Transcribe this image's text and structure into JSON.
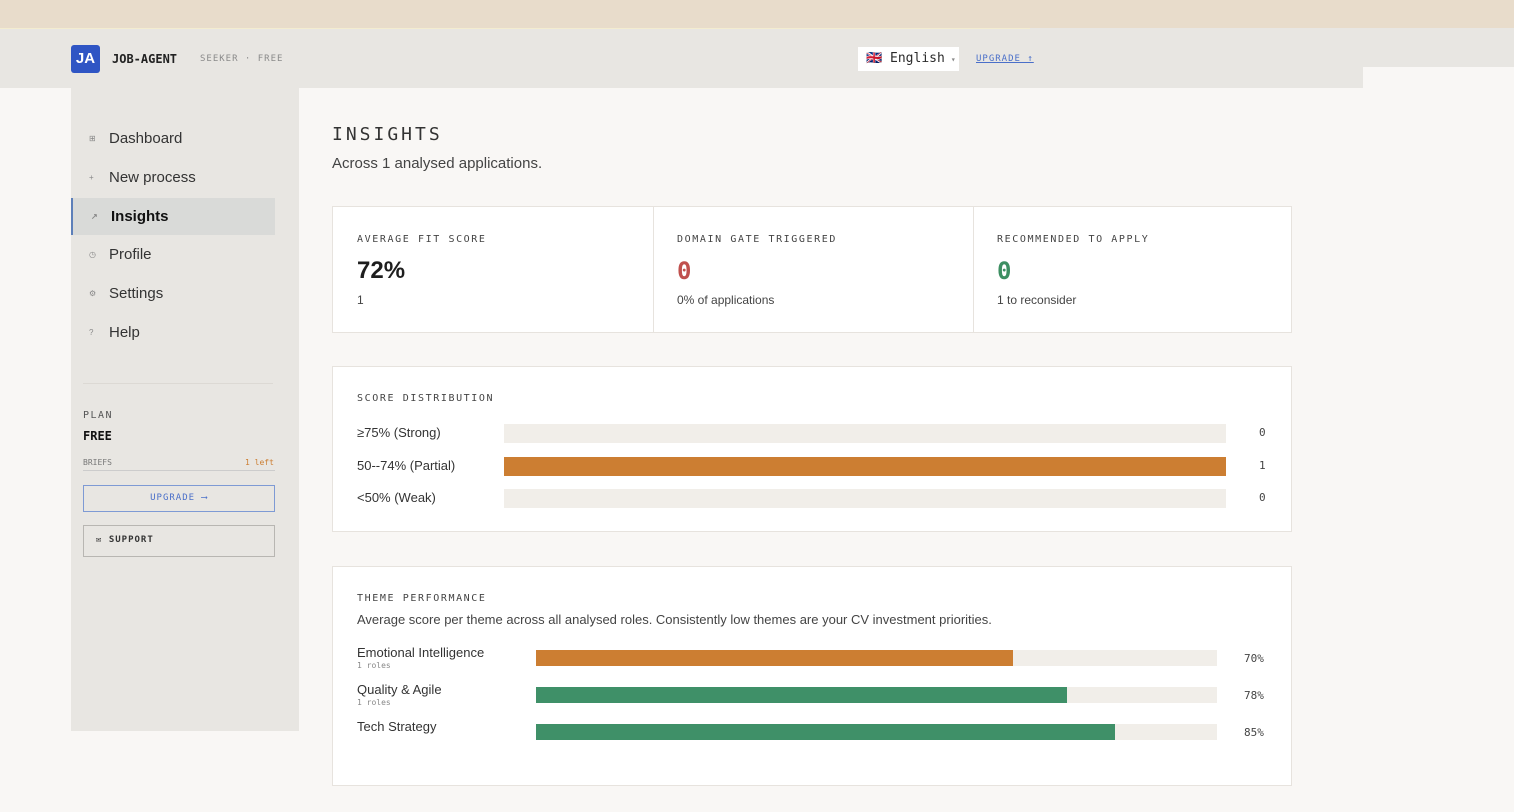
{
  "header": {
    "logo": "JA",
    "brand": "JOB-AGENT",
    "tier": "SEEKER · FREE",
    "language": "🇬🇧 English",
    "upgrade": "UPGRADE ↑"
  },
  "nav": [
    {
      "icon": "⊞",
      "label": "Dashboard"
    },
    {
      "icon": "+",
      "label": "New process"
    },
    {
      "icon": "↗",
      "label": "Insights",
      "active": true
    },
    {
      "icon": "◷",
      "label": "Profile"
    },
    {
      "icon": "⚙",
      "label": "Settings"
    },
    {
      "icon": "?",
      "label": "Help"
    }
  ],
  "plan": {
    "label": "PLAN",
    "name": "FREE",
    "briefs_label": "BRIEFS",
    "briefs_left": "1 left",
    "upgrade": "UPGRADE ⟶",
    "support": "✉ SUPPORT"
  },
  "page": {
    "title": "INSIGHTS",
    "subtitle": "Across 1 analysed applications."
  },
  "stats": [
    {
      "label": "AVERAGE FIT SCORE",
      "value": "72%",
      "note": "1",
      "color": "#1e1e1e"
    },
    {
      "label": "DOMAIN GATE TRIGGERED",
      "value": "0",
      "note": "0% of applications",
      "color": "#c0504d"
    },
    {
      "label": "RECOMMENDED TO APPLY",
      "value": "0",
      "note": "1 to reconsider",
      "color": "#3d8f62"
    }
  ],
  "distribution": {
    "title": "SCORE DISTRIBUTION",
    "color": "#cc7e32",
    "rows": [
      {
        "label": "≥75% (Strong)",
        "count": 0
      },
      {
        "label": "50--74% (Partial)",
        "count": 1
      },
      {
        "label": "<50% (Weak)",
        "count": 0
      }
    ]
  },
  "themes": {
    "title": "THEME PERFORMANCE",
    "description": "Average score per theme across all analysed roles. Consistently low themes are your CV investment priorities.",
    "rows": [
      {
        "label": "Emotional Intelligence",
        "roles": "1 roles",
        "score": 70,
        "score_label": "70%",
        "color": "#cc7e32"
      },
      {
        "label": "Quality & Agile",
        "roles": "1 roles",
        "score": 78,
        "score_label": "78%",
        "color": "#3f9068"
      },
      {
        "label": "Tech Strategy",
        "score": 85,
        "score_label": "85%",
        "color": "#3f9068"
      }
    ]
  }
}
